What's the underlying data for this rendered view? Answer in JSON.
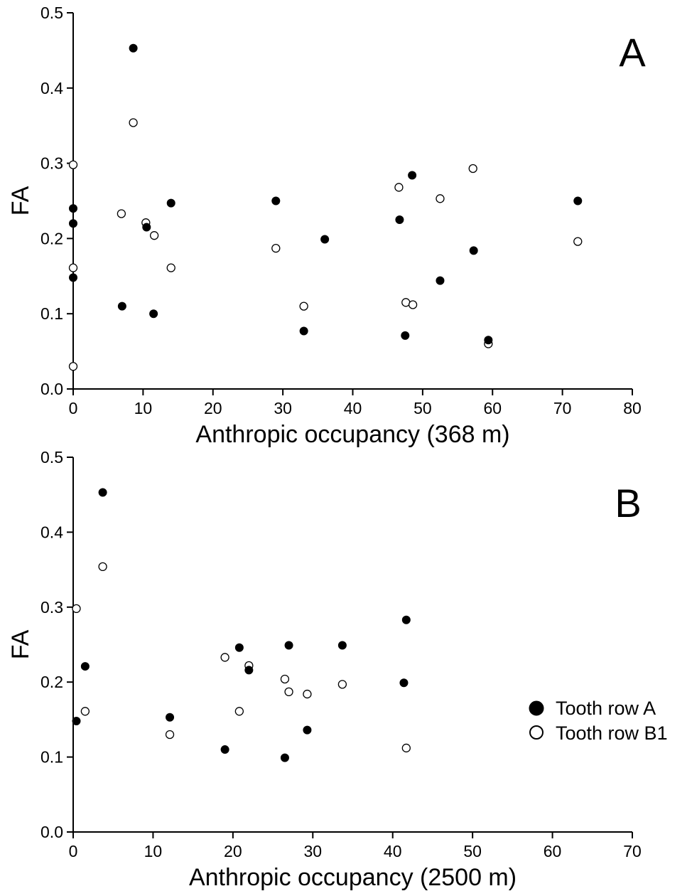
{
  "chart_data": [
    {
      "type": "scatter",
      "panel_label": "A",
      "xlabel": "Anthropic occupancy (368 m)",
      "ylabel": "FA",
      "xlim": [
        0,
        80
      ],
      "ylim": [
        0,
        0.5
      ],
      "xticks": [
        "0",
        "10",
        "20",
        "30",
        "40",
        "50",
        "60",
        "70",
        "80"
      ],
      "yticks": [
        "0.0",
        "0.1",
        "0.2",
        "0.3",
        "0.4",
        "0.5"
      ],
      "grid": false,
      "series": [
        {
          "name": "Tooth row A",
          "marker": "filled-circle",
          "points": [
            {
              "x": 0,
              "y": 0.24
            },
            {
              "x": 0,
              "y": 0.22
            },
            {
              "x": 0,
              "y": 0.148
            },
            {
              "x": 7,
              "y": 0.11
            },
            {
              "x": 8.6,
              "y": 0.453
            },
            {
              "x": 10.5,
              "y": 0.215
            },
            {
              "x": 11.5,
              "y": 0.1
            },
            {
              "x": 14,
              "y": 0.247
            },
            {
              "x": 29,
              "y": 0.25
            },
            {
              "x": 33,
              "y": 0.077
            },
            {
              "x": 36,
              "y": 0.199
            },
            {
              "x": 46.7,
              "y": 0.225
            },
            {
              "x": 47.5,
              "y": 0.071
            },
            {
              "x": 48.5,
              "y": 0.284
            },
            {
              "x": 52.5,
              "y": 0.144
            },
            {
              "x": 57.3,
              "y": 0.184
            },
            {
              "x": 59.4,
              "y": 0.065
            },
            {
              "x": 72.2,
              "y": 0.25
            }
          ]
        },
        {
          "name": "Tooth row B1",
          "marker": "open-circle",
          "points": [
            {
              "x": 0,
              "y": 0.298
            },
            {
              "x": 0,
              "y": 0.161
            },
            {
              "x": 0,
              "y": 0.03
            },
            {
              "x": 6.9,
              "y": 0.233
            },
            {
              "x": 8.6,
              "y": 0.354
            },
            {
              "x": 10.4,
              "y": 0.221
            },
            {
              "x": 11.6,
              "y": 0.204
            },
            {
              "x": 14,
              "y": 0.161
            },
            {
              "x": 29,
              "y": 0.187
            },
            {
              "x": 33,
              "y": 0.11
            },
            {
              "x": 46.6,
              "y": 0.268
            },
            {
              "x": 47.6,
              "y": 0.115
            },
            {
              "x": 48.6,
              "y": 0.112
            },
            {
              "x": 52.5,
              "y": 0.253
            },
            {
              "x": 57.2,
              "y": 0.293
            },
            {
              "x": 59.4,
              "y": 0.06
            },
            {
              "x": 72.2,
              "y": 0.196
            }
          ]
        }
      ]
    },
    {
      "type": "scatter",
      "panel_label": "B",
      "xlabel": "Anthropic occupancy (2500 m)",
      "ylabel": "FA",
      "xlim": [
        0,
        70
      ],
      "ylim": [
        0,
        0.5
      ],
      "xticks": [
        "0",
        "10",
        "20",
        "30",
        "40",
        "50",
        "60",
        "70"
      ],
      "yticks": [
        "0.0",
        "0.1",
        "0.2",
        "0.3",
        "0.4",
        "0.5"
      ],
      "grid": false,
      "legend_position": "right",
      "series": [
        {
          "name": "Tooth row A",
          "marker": "filled-circle",
          "points": [
            {
              "x": 0.4,
              "y": 0.148
            },
            {
              "x": 1.5,
              "y": 0.221
            },
            {
              "x": 3.7,
              "y": 0.453
            },
            {
              "x": 12.1,
              "y": 0.153
            },
            {
              "x": 19.0,
              "y": 0.11
            },
            {
              "x": 20.8,
              "y": 0.246
            },
            {
              "x": 22.0,
              "y": 0.216
            },
            {
              "x": 26.5,
              "y": 0.099
            },
            {
              "x": 27.0,
              "y": 0.249
            },
            {
              "x": 29.3,
              "y": 0.136
            },
            {
              "x": 33.7,
              "y": 0.249
            },
            {
              "x": 41.4,
              "y": 0.199
            },
            {
              "x": 41.7,
              "y": 0.283
            }
          ]
        },
        {
          "name": "Tooth row B1",
          "marker": "open-circle",
          "points": [
            {
              "x": 0.4,
              "y": 0.298
            },
            {
              "x": 1.5,
              "y": 0.161
            },
            {
              "x": 3.7,
              "y": 0.354
            },
            {
              "x": 12.1,
              "y": 0.13
            },
            {
              "x": 19.0,
              "y": 0.233
            },
            {
              "x": 20.8,
              "y": 0.161
            },
            {
              "x": 22.0,
              "y": 0.222
            },
            {
              "x": 26.5,
              "y": 0.204
            },
            {
              "x": 27.0,
              "y": 0.187
            },
            {
              "x": 29.3,
              "y": 0.184
            },
            {
              "x": 33.7,
              "y": 0.197
            },
            {
              "x": 41.7,
              "y": 0.112
            }
          ]
        }
      ]
    }
  ],
  "legend": {
    "items": [
      {
        "label": "Tooth row A",
        "marker": "filled-circle"
      },
      {
        "label": "Tooth row B1",
        "marker": "open-circle"
      }
    ]
  }
}
